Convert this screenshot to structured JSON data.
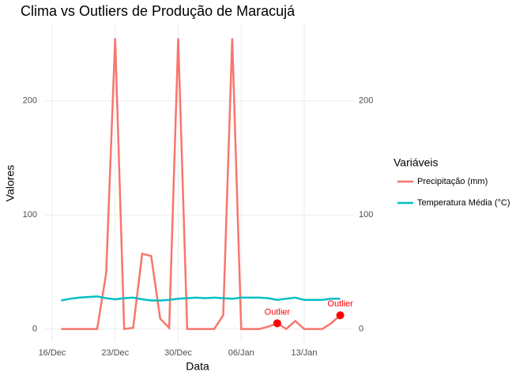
{
  "chart_data": {
    "type": "line",
    "title": "Clima vs Outliers de Produção de Maracujá",
    "x_label": "Data",
    "y_label": "Valores",
    "x": [
      "17/Dec",
      "18/Dec",
      "19/Dec",
      "20/Dec",
      "21/Dec",
      "22/Dec",
      "23/Dec",
      "24/Dec",
      "25/Dec",
      "26/Dec",
      "27/Dec",
      "28/Dec",
      "29/Dec",
      "30/Dec",
      "31/Dec",
      "01/Jan",
      "02/Jan",
      "03/Jan",
      "04/Jan",
      "05/Jan",
      "06/Jan",
      "07/Jan",
      "08/Jan",
      "09/Jan",
      "10/Jan",
      "11/Jan",
      "12/Jan",
      "13/Jan",
      "14/Jan",
      "15/Jan",
      "16/Jan",
      "17/Jan"
    ],
    "series": [
      {
        "name": "Precipitação (mm)",
        "color": "#F8766D",
        "values": [
          0,
          0,
          0,
          0,
          0,
          49,
          255,
          0,
          1,
          66,
          64,
          9,
          1,
          255,
          0,
          0,
          0,
          0,
          12,
          255,
          0,
          0,
          0,
          2,
          5,
          0,
          7,
          0,
          0,
          0,
          5,
          12
        ]
      },
      {
        "name": "Temperatura Média (°C)",
        "color": "#00BFC4",
        "values": [
          25,
          26.5,
          27.5,
          28,
          28.5,
          27,
          26,
          27,
          27.5,
          26,
          25,
          25,
          25.5,
          26.5,
          27,
          27.5,
          27,
          27.5,
          27,
          26.5,
          27.5,
          27.5,
          27.5,
          27,
          25.5,
          26.5,
          27.5,
          25.5,
          25.5,
          25.5,
          26.5,
          26.5
        ]
      }
    ],
    "outliers": [
      {
        "x": "10/Jan",
        "value": 5,
        "label": "Outlier"
      },
      {
        "x": "17/Jan",
        "value": 12,
        "label": "Outlier"
      }
    ],
    "outlier_color": "#FF0000",
    "xlim": [
      "16/Dec",
      "18/Jan"
    ],
    "xticks": [
      "16/Dec",
      "23/Dec",
      "30/Dec",
      "06/Jan",
      "13/Jan"
    ],
    "ylim": [
      -10,
      265
    ],
    "yticks": [
      0,
      100,
      200
    ],
    "y2lim": [
      -10,
      265
    ],
    "y2ticks": [
      0,
      100,
      200
    ],
    "legend_title": "Variáveis",
    "legend": "right",
    "grid": true
  }
}
